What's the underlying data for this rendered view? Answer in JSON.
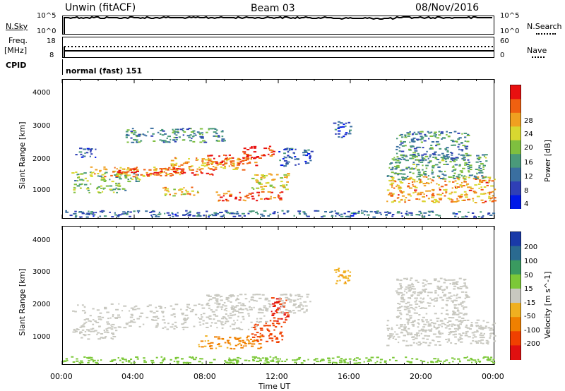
{
  "header": {
    "station": "Unwin (fitACF)",
    "beam": "Beam 03",
    "date": "08/Nov/2016"
  },
  "top_panels": {
    "nsky_label": "N.Sky",
    "nsky_ticks": [
      "10^5",
      "10^0"
    ],
    "nsearch_label": "N.Search",
    "nsearch_ticks": [
      "10^5",
      "10^0"
    ],
    "freq_label": "Freq.",
    "freq_unit": "[MHz]",
    "freq_ticks": [
      "18",
      "8"
    ],
    "nave_label": "Nave",
    "nave_ticks": [
      "60",
      "0"
    ],
    "cpid_label": "CPID",
    "cpid_value": "normal (fast) 151"
  },
  "chart_data": [
    {
      "type": "heatmap",
      "panel": "power",
      "xlabel": "",
      "ylabel": "Slant Range [km]",
      "x_ticks": [
        "00:00",
        "04:00",
        "08:00",
        "12:00",
        "16:00",
        "20:00",
        "00:00"
      ],
      "y_ticks": [
        "1000",
        "2000",
        "3000",
        "4000"
      ],
      "xlim": [
        0,
        24
      ],
      "ylim": [
        180,
        4500
      ],
      "colorbar": {
        "label": "Power [dB]",
        "ticks": [
          "4",
          "8",
          "12",
          "16",
          "20",
          "24",
          "28"
        ],
        "range": [
          0,
          30
        ],
        "colors": [
          "#0018e8",
          "#2f3fb6",
          "#3a6fa0",
          "#4a9a7a",
          "#7fbf3f",
          "#d8d830",
          "#f0a020",
          "#f06010",
          "#e81010"
        ]
      },
      "regions": [
        {
          "t0": 0.5,
          "t1": 4.3,
          "r0": 1350,
          "r1": 1650,
          "p": 14
        },
        {
          "t0": 1.5,
          "t1": 6.5,
          "r0": 1500,
          "r1": 1800,
          "p": 22
        },
        {
          "t0": 3.0,
          "t1": 8.5,
          "r0": 1550,
          "r1": 1750,
          "p": 27
        },
        {
          "t0": 6.0,
          "t1": 10.0,
          "r0": 1700,
          "r1": 2100,
          "p": 22
        },
        {
          "t0": 8.0,
          "t1": 11.0,
          "r0": 1850,
          "r1": 2200,
          "p": 26
        },
        {
          "t0": 10.0,
          "t1": 11.7,
          "r0": 2050,
          "r1": 2450,
          "p": 28
        },
        {
          "t0": 0.5,
          "t1": 3.5,
          "r0": 1000,
          "r1": 1300,
          "p": 14
        },
        {
          "t0": 0.7,
          "t1": 2.0,
          "r0": 2100,
          "r1": 2400,
          "p": 6
        },
        {
          "t0": 5.5,
          "t1": 7.5,
          "r0": 900,
          "r1": 1200,
          "p": 20
        },
        {
          "t0": 8.5,
          "t1": 12.2,
          "r0": 750,
          "r1": 1050,
          "p": 25
        },
        {
          "t0": 10.5,
          "t1": 12.5,
          "r0": 1100,
          "r1": 1600,
          "p": 18
        },
        {
          "t0": 3.5,
          "t1": 9.0,
          "r0": 2550,
          "r1": 3000,
          "p": 10
        },
        {
          "t0": 12.0,
          "t1": 13.8,
          "r0": 1800,
          "r1": 2400,
          "p": 6
        },
        {
          "t0": 15.0,
          "t1": 16.0,
          "r0": 2700,
          "r1": 3200,
          "p": 6
        },
        {
          "t0": 18.0,
          "t1": 24.0,
          "r0": 700,
          "r1": 1500,
          "p": 22
        },
        {
          "t0": 18.0,
          "t1": 23.5,
          "r0": 1400,
          "r1": 2200,
          "p": 12
        },
        {
          "t0": 18.5,
          "t1": 22.5,
          "r0": 2000,
          "r1": 2900,
          "p": 10
        },
        {
          "t0": 0.0,
          "t1": 24.0,
          "r0": 250,
          "r1": 450,
          "p": 8
        }
      ]
    },
    {
      "type": "heatmap",
      "panel": "velocity",
      "xlabel": "Time UT",
      "ylabel": "Slant Range [km]",
      "x_ticks": [
        "00:00",
        "04:00",
        "08:00",
        "12:00",
        "16:00",
        "20:00",
        "00:00"
      ],
      "y_ticks": [
        "1000",
        "2000",
        "3000",
        "4000"
      ],
      "xlim": [
        0,
        24
      ],
      "ylim": [
        180,
        4500
      ],
      "colorbar": {
        "label": "Velocity [m s^-1]",
        "ticks": [
          "200",
          "100",
          "50",
          "15",
          "-15",
          "-50",
          "-100",
          "-200"
        ],
        "colors": [
          "#1a3aa8",
          "#2a6a90",
          "#3a9a60",
          "#7cc838",
          "#c8c8c0",
          "#f0b020",
          "#f08000",
          "#f04000",
          "#e01010"
        ]
      },
      "regions": [
        {
          "t0": 0.5,
          "t1": 11.5,
          "r0": 1300,
          "r1": 2100,
          "v": 0
        },
        {
          "t0": 8.0,
          "t1": 11.5,
          "r0": 1900,
          "r1": 2400,
          "v": 0
        },
        {
          "t0": 0.5,
          "t1": 3.0,
          "r0": 1000,
          "r1": 1400,
          "v": 0
        },
        {
          "t0": 7.5,
          "t1": 11.0,
          "r0": 700,
          "r1": 1100,
          "v": -60
        },
        {
          "t0": 10.5,
          "t1": 12.2,
          "r0": 900,
          "r1": 1500,
          "v": -150
        },
        {
          "t0": 11.5,
          "t1": 12.5,
          "r0": 1500,
          "r1": 2300,
          "v": -200
        },
        {
          "t0": 12.0,
          "t1": 13.8,
          "r0": 1800,
          "r1": 2400,
          "v": 0
        },
        {
          "t0": 15.0,
          "t1": 16.0,
          "r0": 2700,
          "r1": 3200,
          "v": -40
        },
        {
          "t0": 18.0,
          "t1": 24.0,
          "r0": 800,
          "r1": 1600,
          "v": 0
        },
        {
          "t0": 18.5,
          "t1": 22.5,
          "r0": 1600,
          "r1": 2900,
          "v": 0
        },
        {
          "t0": 0.0,
          "t1": 24.0,
          "r0": 250,
          "r1": 450,
          "v": 30
        }
      ]
    }
  ]
}
